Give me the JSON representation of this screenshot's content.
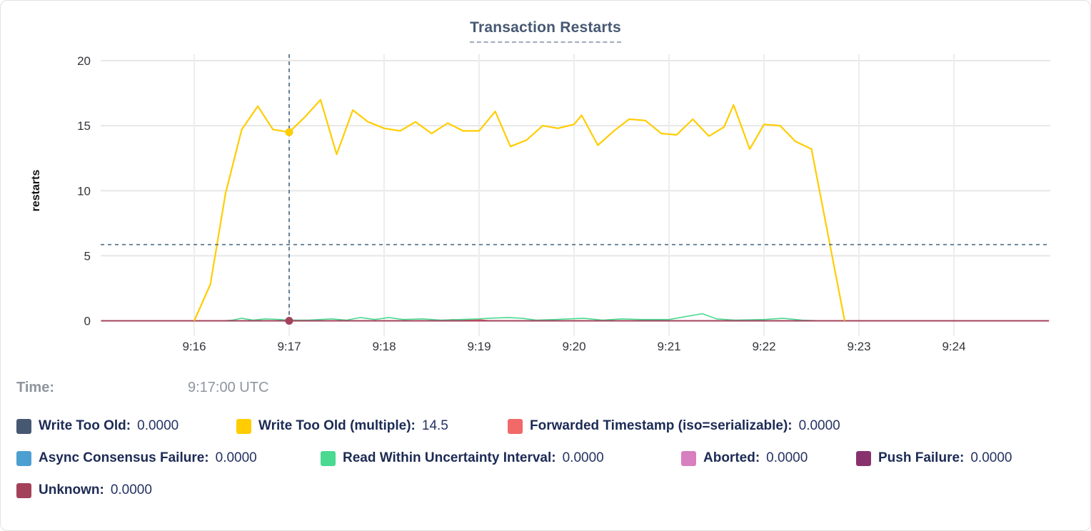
{
  "tooltip": {
    "time_label": "Time:",
    "time_value": "9:17:00 UTC"
  },
  "chart_data": {
    "type": "line",
    "title": "Transaction Restarts",
    "xlabel": "",
    "ylabel": "restarts",
    "ylim": [
      0,
      20
    ],
    "yticks": [
      0,
      5,
      10,
      15,
      20
    ],
    "xticks": [
      "9:16",
      "9:17",
      "9:18",
      "9:19",
      "9:20",
      "9:21",
      "9:22",
      "9:23",
      "9:24"
    ],
    "x_unit": "minutes after 9:16 UTC",
    "grid": true,
    "legend_position": "bottom",
    "hover": {
      "time_label": "Time:",
      "time_value": "9:17:00 UTC",
      "cursor_x_min": 1.0,
      "cursor_y_value": 5.86,
      "highlighted_series": "Write Too Old (multiple)",
      "highlighted_value": 14.5,
      "crosshair_color": "#4e6e87",
      "zero_dot_color": "#A3415B"
    },
    "series": [
      {
        "name": "Write Too Old",
        "label": "Write Too Old:",
        "value": "0.0000",
        "color": "#475872",
        "points": [
          [
            -0.98,
            0
          ],
          [
            9.0,
            0
          ]
        ]
      },
      {
        "name": "Write Too Old (multiple)",
        "label": "Write Too Old (multiple):",
        "value": "14.5",
        "color": "#FFCD02",
        "points": [
          [
            0,
            0
          ],
          [
            0.17,
            2.8
          ],
          [
            0.33,
            9.8
          ],
          [
            0.5,
            14.7
          ],
          [
            0.67,
            16.5
          ],
          [
            0.83,
            14.7
          ],
          [
            1,
            14.5
          ],
          [
            1.17,
            15.7
          ],
          [
            1.33,
            17.0
          ],
          [
            1.5,
            12.8
          ],
          [
            1.67,
            16.2
          ],
          [
            1.83,
            15.3
          ],
          [
            2,
            14.8
          ],
          [
            2.17,
            14.6
          ],
          [
            2.33,
            15.3
          ],
          [
            2.5,
            14.4
          ],
          [
            2.67,
            15.2
          ],
          [
            2.83,
            14.6
          ],
          [
            3,
            14.6
          ],
          [
            3.17,
            16.1
          ],
          [
            3.33,
            13.4
          ],
          [
            3.5,
            13.9
          ],
          [
            3.67,
            15.0
          ],
          [
            3.83,
            14.8
          ],
          [
            4,
            15.1
          ],
          [
            4.08,
            15.8
          ],
          [
            4.25,
            13.5
          ],
          [
            4.42,
            14.6
          ],
          [
            4.58,
            15.5
          ],
          [
            4.75,
            15.4
          ],
          [
            4.92,
            14.4
          ],
          [
            5.08,
            14.3
          ],
          [
            5.25,
            15.5
          ],
          [
            5.42,
            14.2
          ],
          [
            5.58,
            14.9
          ],
          [
            5.68,
            16.6
          ],
          [
            5.85,
            13.2
          ],
          [
            6,
            15.1
          ],
          [
            6.17,
            15.0
          ],
          [
            6.33,
            13.8
          ],
          [
            6.5,
            13.2
          ],
          [
            6.85,
            0
          ]
        ]
      },
      {
        "name": "Forwarded Timestamp (iso=serializable)",
        "label": "Forwarded Timestamp (iso=serializable):",
        "value": "0.0000",
        "color": "#F16969",
        "points": [
          [
            -0.98,
            0
          ],
          [
            2.55,
            0
          ],
          [
            2.72,
            0.1
          ],
          [
            2.9,
            0.06
          ],
          [
            3.0,
            0.08
          ],
          [
            3.12,
            0
          ],
          [
            9.0,
            0
          ]
        ]
      },
      {
        "name": "Async Consensus Failure",
        "label": "Async Consensus Failure:",
        "value": "0.0000",
        "color": "#4E9FD1",
        "points": [
          [
            -0.98,
            0
          ],
          [
            9.0,
            0
          ]
        ]
      },
      {
        "name": "Read Within Uncertainty Interval",
        "label": "Read Within Uncertainty Interval:",
        "value": "0.0000",
        "color": "#49D990",
        "points": [
          [
            -0.98,
            0
          ],
          [
            0.3,
            0
          ],
          [
            0.4,
            0.05
          ],
          [
            0.5,
            0.2
          ],
          [
            0.62,
            0.05
          ],
          [
            0.75,
            0.15
          ],
          [
            0.9,
            0.1
          ],
          [
            1,
            0.05
          ],
          [
            1.2,
            0.05
          ],
          [
            1.45,
            0.15
          ],
          [
            1.6,
            0.05
          ],
          [
            1.75,
            0.25
          ],
          [
            1.9,
            0.1
          ],
          [
            2.05,
            0.25
          ],
          [
            2.2,
            0.1
          ],
          [
            2.4,
            0.15
          ],
          [
            2.6,
            0.05
          ],
          [
            2.8,
            0.1
          ],
          [
            3.0,
            0.15
          ],
          [
            3.1,
            0.2
          ],
          [
            3.3,
            0.25
          ],
          [
            3.45,
            0.2
          ],
          [
            3.6,
            0.05
          ],
          [
            3.8,
            0.1
          ],
          [
            4.1,
            0.2
          ],
          [
            4.3,
            0.05
          ],
          [
            4.5,
            0.15
          ],
          [
            4.7,
            0.1
          ],
          [
            5.0,
            0.1
          ],
          [
            5.35,
            0.55
          ],
          [
            5.5,
            0.15
          ],
          [
            5.7,
            0.05
          ],
          [
            6.0,
            0.1
          ],
          [
            6.2,
            0.2
          ],
          [
            6.4,
            0.05
          ],
          [
            6.6,
            0
          ],
          [
            9.0,
            0
          ]
        ]
      },
      {
        "name": "Aborted",
        "label": "Aborted:",
        "value": "0.0000",
        "color": "#D77FBF",
        "points": [
          [
            -0.98,
            0
          ],
          [
            9.0,
            0
          ]
        ]
      },
      {
        "name": "Push Failure",
        "label": "Push Failure:",
        "value": "0.0000",
        "color": "#87326D",
        "points": [
          [
            -0.98,
            0
          ],
          [
            9.0,
            0
          ]
        ]
      },
      {
        "name": "Unknown",
        "label": "Unknown:",
        "value": "0.0000",
        "color": "#A3415B",
        "points": [
          [
            -0.98,
            0
          ],
          [
            9.0,
            0
          ]
        ]
      }
    ]
  }
}
